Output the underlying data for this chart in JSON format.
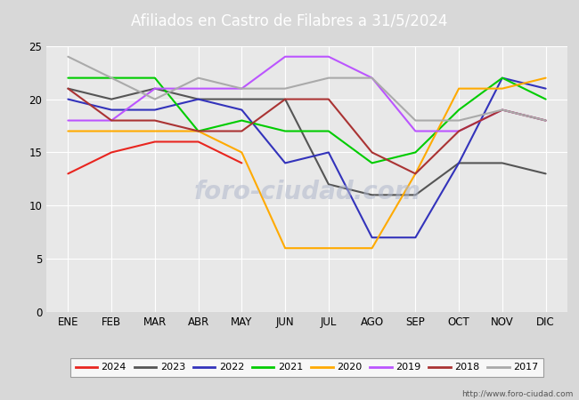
{
  "title": "Afiliados en Castro de Filabres a 31/5/2024",
  "title_bgcolor": "#4d7ebf",
  "title_fgcolor": "#ffffff",
  "months": [
    "ENE",
    "FEB",
    "MAR",
    "ABR",
    "MAY",
    "JUN",
    "JUL",
    "AGO",
    "SEP",
    "OCT",
    "NOV",
    "DIC"
  ],
  "ylim": [
    0,
    25
  ],
  "yticks": [
    0,
    5,
    10,
    15,
    20,
    25
  ],
  "series": {
    "2024": {
      "color": "#e8251f",
      "data": [
        13,
        15,
        16,
        16,
        14,
        null,
        null,
        null,
        null,
        null,
        null,
        null
      ]
    },
    "2023": {
      "color": "#555555",
      "data": [
        21,
        20,
        21,
        20,
        20,
        20,
        12,
        11,
        11,
        14,
        14,
        13
      ]
    },
    "2022": {
      "color": "#3333bb",
      "data": [
        20,
        19,
        19,
        20,
        19,
        14,
        15,
        7,
        7,
        14,
        22,
        21
      ]
    },
    "2021": {
      "color": "#00cc00",
      "data": [
        22,
        22,
        22,
        17,
        18,
        17,
        17,
        14,
        15,
        19,
        22,
        20
      ]
    },
    "2020": {
      "color": "#ffaa00",
      "data": [
        17,
        17,
        17,
        17,
        15,
        6,
        6,
        6,
        13,
        21,
        21,
        22
      ]
    },
    "2019": {
      "color": "#bb55ff",
      "data": [
        18,
        18,
        21,
        21,
        21,
        24,
        24,
        22,
        17,
        17,
        19,
        18
      ]
    },
    "2018": {
      "color": "#aa3333",
      "data": [
        21,
        18,
        18,
        17,
        17,
        20,
        20,
        15,
        13,
        17,
        19,
        18
      ]
    },
    "2017": {
      "color": "#aaaaaa",
      "data": [
        24,
        22,
        20,
        22,
        21,
        21,
        22,
        22,
        18,
        18,
        19,
        18
      ]
    }
  },
  "legend_order": [
    "2024",
    "2023",
    "2022",
    "2021",
    "2020",
    "2019",
    "2018",
    "2017"
  ],
  "url": "http://www.foro-ciudad.com",
  "bg_color": "#d8d8d8",
  "plot_bg_color": "#e8e8e8"
}
